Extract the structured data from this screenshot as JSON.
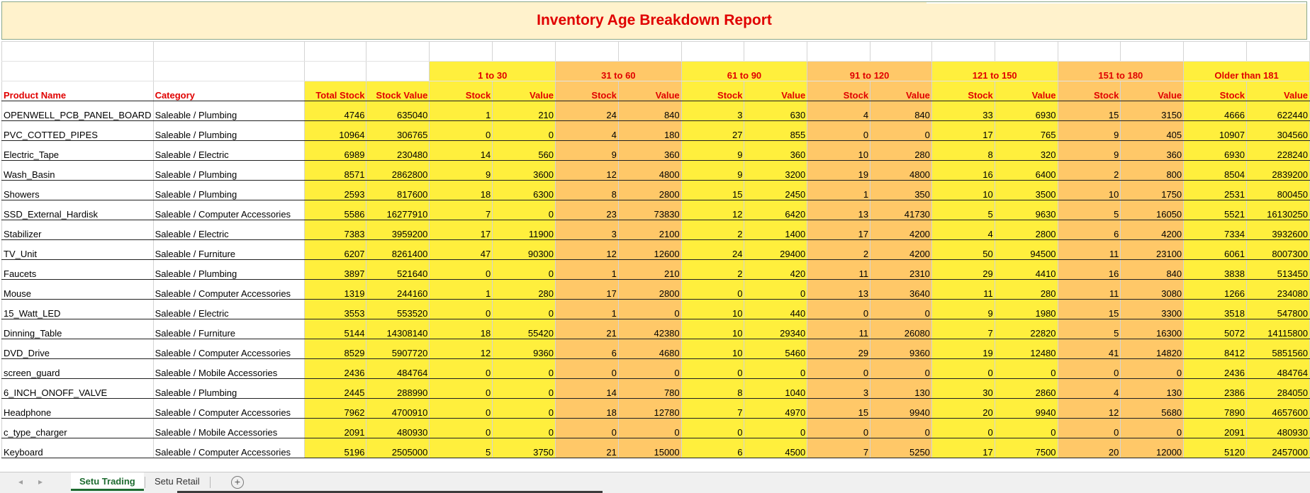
{
  "report": {
    "title": "Inventory Age Breakdown Report"
  },
  "headers": {
    "product": "Product Name",
    "category": "Category",
    "total_stock": "Total Stock",
    "stock_value": "Stock Value",
    "stock": "Stock",
    "value": "Value"
  },
  "age_bands": [
    "1 to 30",
    "31 to 60",
    "61 to 90",
    "91 to 120",
    "121 to 150",
    "151 to 180",
    "Older than 181"
  ],
  "rows": [
    {
      "product": "OPENWELL_PCB_PANEL_BOARD",
      "category": "Saleable / Plumbing",
      "total": "4746",
      "value": "635040",
      "buckets": [
        "1",
        "210",
        "24",
        "840",
        "3",
        "630",
        "4",
        "840",
        "33",
        "6930",
        "15",
        "3150",
        "4666",
        "622440"
      ]
    },
    {
      "product": "PVC_COTTED_PIPES",
      "category": "Saleable / Plumbing",
      "total": "10964",
      "value": "306765",
      "buckets": [
        "0",
        "0",
        "4",
        "180",
        "27",
        "855",
        "0",
        "0",
        "17",
        "765",
        "9",
        "405",
        "10907",
        "304560"
      ]
    },
    {
      "product": "Electric_Tape",
      "category": "Saleable / Electric",
      "total": "6989",
      "value": "230480",
      "buckets": [
        "14",
        "560",
        "9",
        "360",
        "9",
        "360",
        "10",
        "280",
        "8",
        "320",
        "9",
        "360",
        "6930",
        "228240"
      ]
    },
    {
      "product": "Wash_Basin",
      "category": "Saleable / Plumbing",
      "total": "8571",
      "value": "2862800",
      "buckets": [
        "9",
        "3600",
        "12",
        "4800",
        "9",
        "3200",
        "19",
        "4800",
        "16",
        "6400",
        "2",
        "800",
        "8504",
        "2839200"
      ]
    },
    {
      "product": "Showers",
      "category": "Saleable / Plumbing",
      "total": "2593",
      "value": "817600",
      "buckets": [
        "18",
        "6300",
        "8",
        "2800",
        "15",
        "2450",
        "1",
        "350",
        "10",
        "3500",
        "10",
        "1750",
        "2531",
        "800450"
      ]
    },
    {
      "product": "SSD_External_Hardisk",
      "category": "Saleable / Computer Accessories",
      "total": "5586",
      "value": "16277910",
      "buckets": [
        "7",
        "0",
        "23",
        "73830",
        "12",
        "6420",
        "13",
        "41730",
        "5",
        "9630",
        "5",
        "16050",
        "5521",
        "16130250"
      ]
    },
    {
      "product": "Stabilizer",
      "category": "Saleable / Electric",
      "total": "7383",
      "value": "3959200",
      "buckets": [
        "17",
        "11900",
        "3",
        "2100",
        "2",
        "1400",
        "17",
        "4200",
        "4",
        "2800",
        "6",
        "4200",
        "7334",
        "3932600"
      ]
    },
    {
      "product": "TV_Unit",
      "category": "Saleable / Furniture",
      "total": "6207",
      "value": "8261400",
      "buckets": [
        "47",
        "90300",
        "12",
        "12600",
        "24",
        "29400",
        "2",
        "4200",
        "50",
        "94500",
        "11",
        "23100",
        "6061",
        "8007300"
      ]
    },
    {
      "product": "Faucets",
      "category": "Saleable / Plumbing",
      "total": "3897",
      "value": "521640",
      "buckets": [
        "0",
        "0",
        "1",
        "210",
        "2",
        "420",
        "11",
        "2310",
        "29",
        "4410",
        "16",
        "840",
        "3838",
        "513450"
      ]
    },
    {
      "product": "Mouse",
      "category": "Saleable / Computer Accessories",
      "total": "1319",
      "value": "244160",
      "buckets": [
        "1",
        "280",
        "17",
        "2800",
        "0",
        "0",
        "13",
        "3640",
        "11",
        "280",
        "11",
        "3080",
        "1266",
        "234080"
      ]
    },
    {
      "product": "15_Watt_LED",
      "category": "Saleable / Electric",
      "total": "3553",
      "value": "553520",
      "buckets": [
        "0",
        "0",
        "1",
        "0",
        "10",
        "440",
        "0",
        "0",
        "9",
        "1980",
        "15",
        "3300",
        "3518",
        "547800"
      ]
    },
    {
      "product": "Dinning_Table",
      "category": "Saleable / Furniture",
      "total": "5144",
      "value": "14308140",
      "buckets": [
        "18",
        "55420",
        "21",
        "42380",
        "10",
        "29340",
        "11",
        "26080",
        "7",
        "22820",
        "5",
        "16300",
        "5072",
        "14115800"
      ]
    },
    {
      "product": "DVD_Drive",
      "category": "Saleable / Computer Accessories",
      "total": "8529",
      "value": "5907720",
      "buckets": [
        "12",
        "9360",
        "6",
        "4680",
        "10",
        "5460",
        "29",
        "9360",
        "19",
        "12480",
        "41",
        "14820",
        "8412",
        "5851560"
      ]
    },
    {
      "product": "screen_guard",
      "category": "Saleable / Mobile Accessories",
      "total": "2436",
      "value": "484764",
      "buckets": [
        "0",
        "0",
        "0",
        "0",
        "0",
        "0",
        "0",
        "0",
        "0",
        "0",
        "0",
        "0",
        "2436",
        "484764"
      ]
    },
    {
      "product": "6_INCH_ONOFF_VALVE",
      "category": "Saleable / Plumbing",
      "total": "2445",
      "value": "288990",
      "buckets": [
        "0",
        "0",
        "14",
        "780",
        "8",
        "1040",
        "3",
        "130",
        "30",
        "2860",
        "4",
        "130",
        "2386",
        "284050"
      ]
    },
    {
      "product": "Headphone",
      "category": "Saleable / Computer Accessories",
      "total": "7962",
      "value": "4700910",
      "buckets": [
        "0",
        "0",
        "18",
        "12780",
        "7",
        "4970",
        "15",
        "9940",
        "20",
        "9940",
        "12",
        "5680",
        "7890",
        "4657600"
      ]
    },
    {
      "product": "c_type_charger",
      "category": "Saleable / Mobile Accessories",
      "total": "2091",
      "value": "480930",
      "buckets": [
        "0",
        "0",
        "0",
        "0",
        "0",
        "0",
        "0",
        "0",
        "0",
        "0",
        "0",
        "0",
        "2091",
        "480930"
      ]
    },
    {
      "product": "Keyboard",
      "category": "Saleable / Computer Accessories",
      "total": "5196",
      "value": "2505000",
      "buckets": [
        "5",
        "3750",
        "21",
        "15000",
        "6",
        "4500",
        "7",
        "5250",
        "17",
        "7500",
        "20",
        "12000",
        "5120",
        "2457000"
      ]
    }
  ],
  "sheet_tabs": [
    "Setu Trading",
    "Setu Retail"
  ],
  "active_tab": "Setu Trading",
  "colors": {
    "title_bg": "#fff2cc",
    "title_text": "#e00000",
    "yellow": "#ffef3d",
    "orange": "#ffc868",
    "tab_active": "#1e6b30"
  }
}
